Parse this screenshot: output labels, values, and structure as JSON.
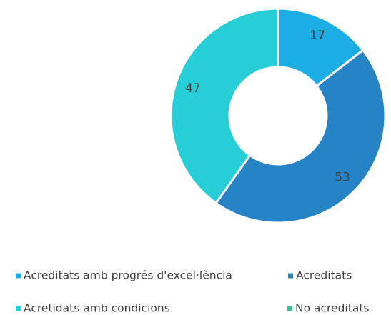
{
  "chart_data": {
    "type": "donut",
    "categories": [
      "Acreditats amb progrés d'excel·lència",
      "Acreditats",
      "Acretidats amb condicions",
      "No acreditats"
    ],
    "values": [
      17,
      53,
      47,
      0
    ],
    "colors": [
      "#1cade4",
      "#2683c6",
      "#27ced7",
      "#42ba97"
    ],
    "legend": "bottom"
  }
}
